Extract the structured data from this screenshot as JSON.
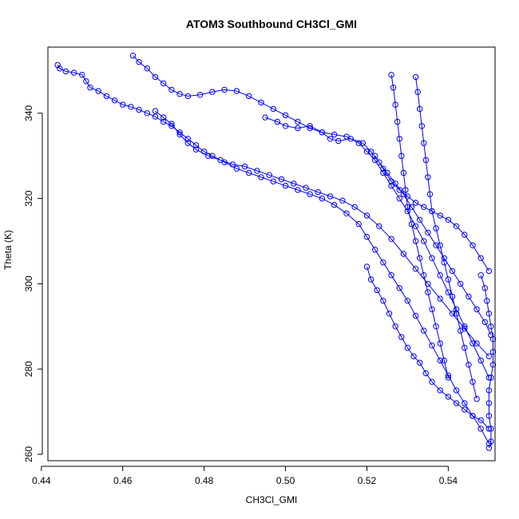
{
  "chart_data": {
    "type": "scatter",
    "title": "ATOM3 Southbound CH3Cl_GMI",
    "xlabel": "CH3Cl_GMI",
    "ylabel": "Theta (K)",
    "xlim": [
      0.4416,
      0.5515
    ],
    "ylim": [
      258.5,
      355.5
    ],
    "xticks": [
      0.44,
      0.46,
      0.48,
      0.5,
      0.52,
      0.54
    ],
    "xtick_labels": [
      "0.44",
      "0.46",
      "0.48",
      "0.50",
      "0.52",
      "0.54"
    ],
    "yticks": [
      260,
      280,
      300,
      320,
      340
    ],
    "ytick_labels": [
      "260",
      "280",
      "300",
      "320",
      "340"
    ],
    "grid": false,
    "legend": "none",
    "marker": "open-circle",
    "connected": true,
    "color": "#0000ff",
    "series": [
      {
        "points": [
          [
            0.444,
            351.3
          ],
          [
            0.4445,
            350.5
          ],
          [
            0.446,
            349.8
          ],
          [
            0.448,
            349.5
          ],
          [
            0.45,
            349.0
          ],
          [
            0.451,
            347.5
          ],
          [
            0.452,
            346.0
          ],
          [
            0.454,
            345.2
          ],
          [
            0.456,
            344.0
          ],
          [
            0.458,
            343.0
          ],
          [
            0.46,
            342.0
          ],
          [
            0.462,
            341.5
          ],
          [
            0.464,
            340.8
          ],
          [
            0.466,
            340.0
          ],
          [
            0.468,
            339.2
          ],
          [
            0.47,
            338.0
          ],
          [
            0.472,
            337.0
          ],
          [
            0.474,
            335.5
          ],
          [
            0.476,
            334.0
          ],
          [
            0.478,
            332.5
          ],
          [
            0.48,
            331.0
          ],
          [
            0.482,
            330.0
          ],
          [
            0.485,
            328.5
          ],
          [
            0.488,
            327.0
          ],
          [
            0.491,
            326.0
          ],
          [
            0.494,
            325.0
          ],
          [
            0.497,
            324.0
          ],
          [
            0.5,
            323.0
          ],
          [
            0.503,
            322.0
          ],
          [
            0.506,
            321.0
          ],
          [
            0.509,
            320.0
          ],
          [
            0.512,
            318.5
          ],
          [
            0.515,
            316.5
          ],
          [
            0.518,
            314.0
          ],
          [
            0.52,
            311.0
          ],
          [
            0.522,
            308.0
          ],
          [
            0.524,
            305.0
          ],
          [
            0.526,
            302.0
          ],
          [
            0.528,
            299.0
          ],
          [
            0.53,
            296.0
          ],
          [
            0.532,
            292.5
          ],
          [
            0.534,
            289.0
          ],
          [
            0.536,
            285.5
          ],
          [
            0.538,
            282.0
          ],
          [
            0.54,
            278.5
          ],
          [
            0.542,
            275.0
          ],
          [
            0.544,
            272.0
          ],
          [
            0.546,
            269.0
          ],
          [
            0.548,
            266.0
          ],
          [
            0.55,
            262.5
          ]
        ]
      },
      {
        "points": [
          [
            0.4625,
            353.5
          ],
          [
            0.464,
            352.0
          ],
          [
            0.466,
            350.5
          ],
          [
            0.468,
            348.5
          ],
          [
            0.47,
            347.0
          ],
          [
            0.472,
            345.5
          ],
          [
            0.474,
            344.5
          ],
          [
            0.476,
            344.0
          ],
          [
            0.479,
            344.3
          ],
          [
            0.482,
            345.0
          ],
          [
            0.485,
            345.5
          ],
          [
            0.488,
            345.2
          ],
          [
            0.491,
            344.0
          ],
          [
            0.494,
            342.5
          ],
          [
            0.497,
            341.0
          ],
          [
            0.5,
            339.5
          ],
          [
            0.503,
            338.0
          ],
          [
            0.506,
            336.5
          ],
          [
            0.509,
            335.5
          ],
          [
            0.512,
            335.0
          ],
          [
            0.515,
            334.5
          ],
          [
            0.518,
            333.0
          ],
          [
            0.52,
            331.0
          ],
          [
            0.522,
            329.0
          ],
          [
            0.524,
            326.0
          ],
          [
            0.526,
            323.0
          ],
          [
            0.528,
            320.0
          ],
          [
            0.53,
            317.0
          ],
          [
            0.532,
            313.5
          ],
          [
            0.534,
            310.0
          ],
          [
            0.536,
            306.0
          ],
          [
            0.538,
            302.0
          ],
          [
            0.54,
            298.0
          ],
          [
            0.542,
            294.0
          ],
          [
            0.544,
            290.0
          ],
          [
            0.546,
            286.0
          ],
          [
            0.548,
            282.0
          ],
          [
            0.55,
            278.0
          ]
        ]
      },
      {
        "points": [
          [
            0.468,
            340.5
          ],
          [
            0.47,
            339.0
          ],
          [
            0.472,
            337.5
          ],
          [
            0.474,
            335.0
          ],
          [
            0.476,
            333.0
          ],
          [
            0.478,
            331.5
          ],
          [
            0.481,
            330.0
          ],
          [
            0.484,
            329.0
          ],
          [
            0.487,
            328.0
          ],
          [
            0.49,
            327.5
          ],
          [
            0.493,
            326.5
          ],
          [
            0.496,
            325.5
          ],
          [
            0.499,
            324.5
          ],
          [
            0.502,
            323.5
          ],
          [
            0.505,
            322.5
          ],
          [
            0.508,
            321.5
          ],
          [
            0.511,
            320.5
          ],
          [
            0.514,
            319.5
          ],
          [
            0.517,
            318.0
          ],
          [
            0.52,
            316.0
          ],
          [
            0.523,
            313.5
          ],
          [
            0.526,
            310.5
          ],
          [
            0.529,
            307.0
          ],
          [
            0.532,
            303.5
          ],
          [
            0.535,
            300.0
          ],
          [
            0.538,
            296.5
          ],
          [
            0.541,
            293.0
          ],
          [
            0.544,
            289.5
          ],
          [
            0.547,
            286.0
          ],
          [
            0.55,
            283.0
          ]
        ]
      },
      {
        "points": [
          [
            0.495,
            339.0
          ],
          [
            0.498,
            338.0
          ],
          [
            0.5,
            337.0
          ],
          [
            0.503,
            336.5
          ],
          [
            0.506,
            337.0
          ],
          [
            0.509,
            335.5
          ],
          [
            0.511,
            334.0
          ],
          [
            0.513,
            333.5
          ],
          [
            0.516,
            334.0
          ],
          [
            0.519,
            333.0
          ],
          [
            0.521,
            331.0
          ],
          [
            0.523,
            328.5
          ],
          [
            0.525,
            326.0
          ],
          [
            0.527,
            323.5
          ],
          [
            0.529,
            321.0
          ],
          [
            0.531,
            318.0
          ],
          [
            0.533,
            315.0
          ],
          [
            0.535,
            312.0
          ],
          [
            0.537,
            309.0
          ],
          [
            0.539,
            306.0
          ],
          [
            0.541,
            303.0
          ],
          [
            0.543,
            300.0
          ],
          [
            0.545,
            297.0
          ],
          [
            0.547,
            294.0
          ],
          [
            0.549,
            291.0
          ],
          [
            0.5505,
            288.0
          ]
        ]
      },
      {
        "points": [
          [
            0.52,
            304.0
          ],
          [
            0.521,
            301.0
          ],
          [
            0.5225,
            298.5
          ],
          [
            0.524,
            296.0
          ],
          [
            0.5255,
            293.0
          ],
          [
            0.527,
            290.0
          ],
          [
            0.5285,
            287.5
          ],
          [
            0.53,
            285.0
          ],
          [
            0.5315,
            283.0
          ],
          [
            0.533,
            281.5
          ],
          [
            0.5345,
            279.0
          ],
          [
            0.536,
            277.0
          ],
          [
            0.538,
            275.0
          ],
          [
            0.54,
            273.5
          ],
          [
            0.542,
            272.0
          ],
          [
            0.544,
            270.5
          ],
          [
            0.546,
            269.0
          ],
          [
            0.548,
            268.0
          ],
          [
            0.55,
            266.0
          ]
        ]
      },
      {
        "points": [
          [
            0.526,
            349.0
          ],
          [
            0.5265,
            346.0
          ],
          [
            0.527,
            342.0
          ],
          [
            0.5275,
            338.0
          ],
          [
            0.528,
            334.0
          ],
          [
            0.5285,
            330.0
          ],
          [
            0.529,
            326.0
          ],
          [
            0.5295,
            322.0
          ],
          [
            0.53,
            318.0
          ],
          [
            0.531,
            314.0
          ],
          [
            0.532,
            310.0
          ],
          [
            0.533,
            306.0
          ],
          [
            0.534,
            302.0
          ],
          [
            0.535,
            298.0
          ],
          [
            0.536,
            294.0
          ],
          [
            0.537,
            290.0
          ],
          [
            0.538,
            286.0
          ],
          [
            0.539,
            282.0
          ],
          [
            0.54,
            278.0
          ]
        ]
      },
      {
        "points": [
          [
            0.532,
            348.5
          ],
          [
            0.5325,
            345.0
          ],
          [
            0.533,
            341.0
          ],
          [
            0.5335,
            337.0
          ],
          [
            0.534,
            333.0
          ],
          [
            0.5345,
            329.0
          ],
          [
            0.535,
            325.0
          ],
          [
            0.5355,
            321.0
          ],
          [
            0.536,
            317.0
          ],
          [
            0.537,
            313.0
          ],
          [
            0.538,
            309.0
          ],
          [
            0.539,
            305.0
          ],
          [
            0.54,
            301.0
          ],
          [
            0.541,
            297.0
          ],
          [
            0.542,
            293.0
          ],
          [
            0.543,
            289.0
          ],
          [
            0.544,
            285.0
          ],
          [
            0.545,
            281.0
          ],
          [
            0.546,
            277.0
          ],
          [
            0.547,
            273.0
          ]
        ]
      },
      {
        "points": [
          [
            0.522,
            330.0
          ],
          [
            0.524,
            327.0
          ],
          [
            0.526,
            324.0
          ],
          [
            0.528,
            322.0
          ],
          [
            0.53,
            320.5
          ],
          [
            0.532,
            319.0
          ],
          [
            0.534,
            318.0
          ],
          [
            0.536,
            317.0
          ],
          [
            0.538,
            316.0
          ],
          [
            0.54,
            315.0
          ],
          [
            0.542,
            313.5
          ],
          [
            0.544,
            311.5
          ],
          [
            0.546,
            309.0
          ],
          [
            0.548,
            306.0
          ],
          [
            0.55,
            303.0
          ]
        ]
      },
      {
        "points": [
          [
            0.548,
            302.0
          ],
          [
            0.549,
            299.0
          ],
          [
            0.5495,
            296.0
          ],
          [
            0.55,
            293.0
          ],
          [
            0.5505,
            290.0
          ],
          [
            0.551,
            287.0
          ],
          [
            0.551,
            284.0
          ],
          [
            0.551,
            281.0
          ],
          [
            0.5505,
            278.0
          ],
          [
            0.55,
            275.0
          ],
          [
            0.55,
            272.0
          ],
          [
            0.55,
            269.0
          ],
          [
            0.5505,
            266.0
          ],
          [
            0.5505,
            263.0
          ],
          [
            0.55,
            261.5
          ]
        ]
      }
    ]
  }
}
